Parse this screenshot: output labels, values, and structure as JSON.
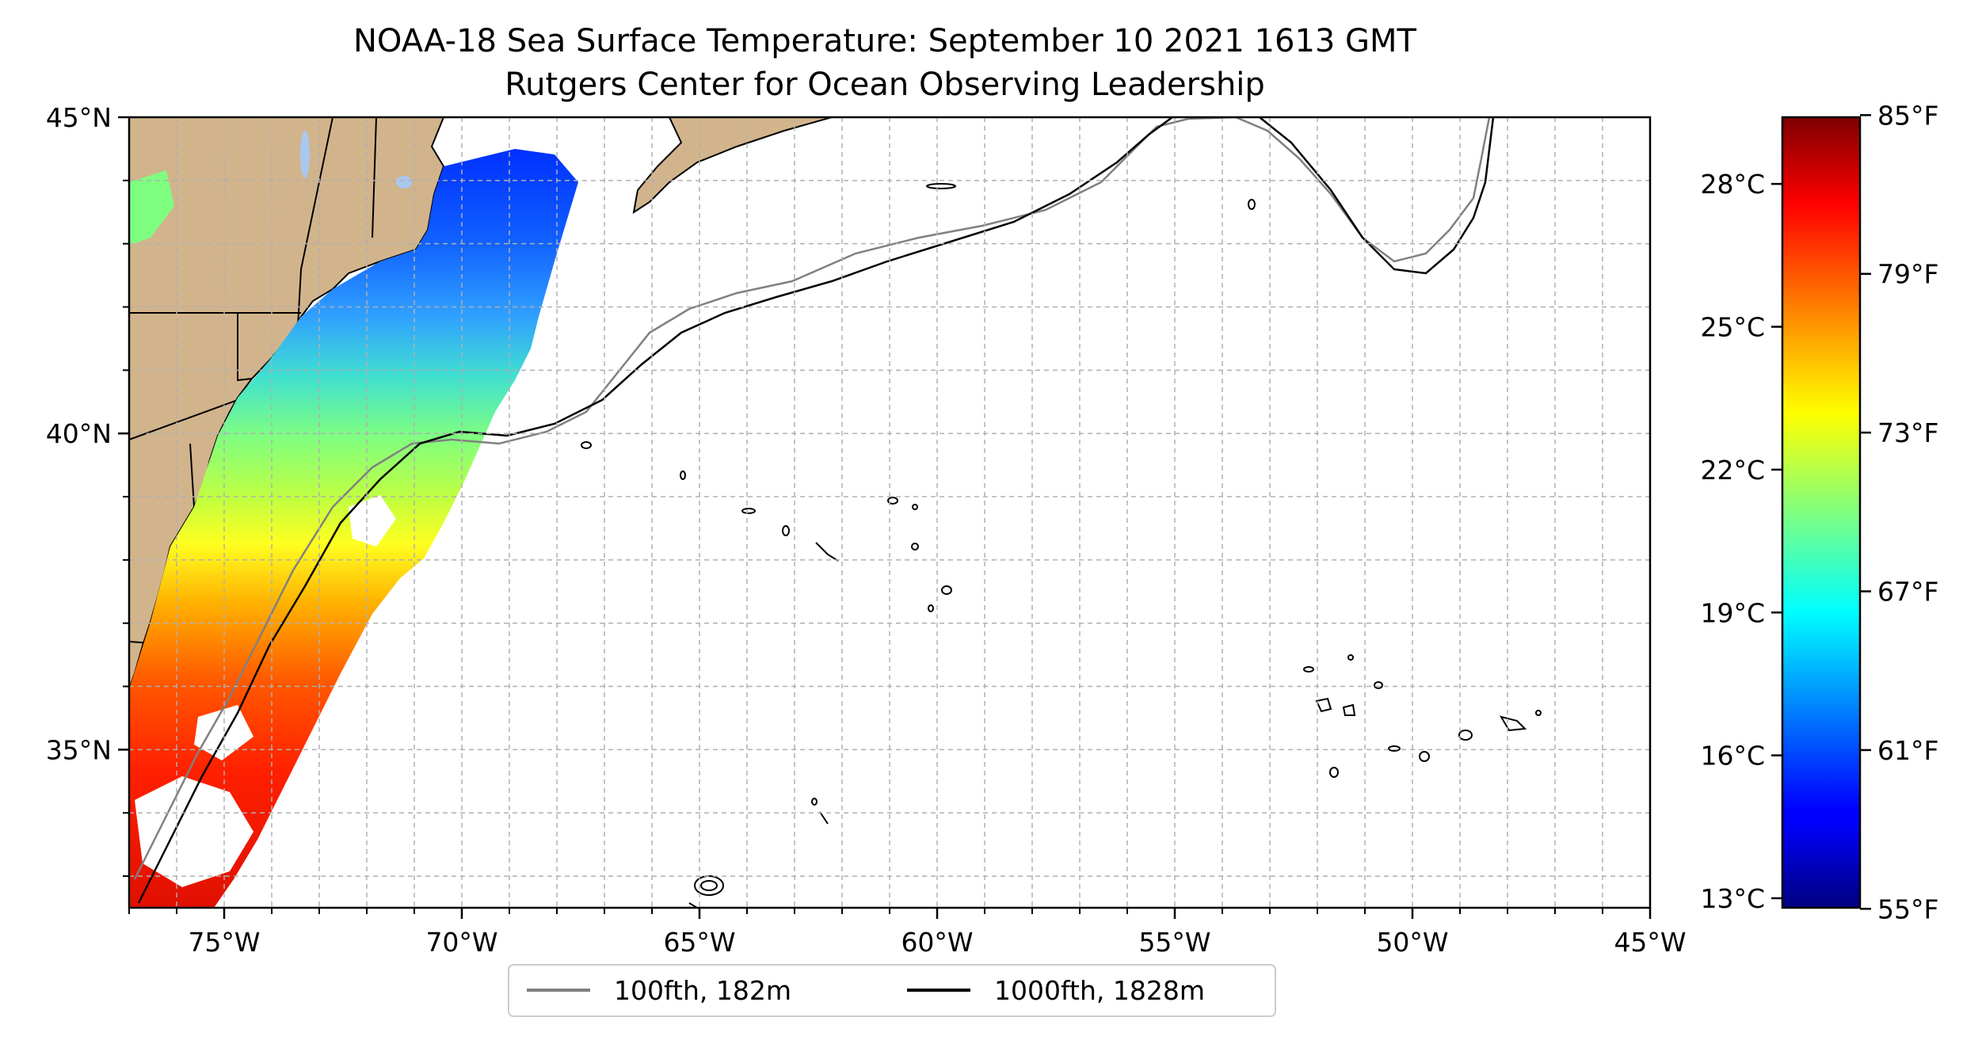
{
  "title_line1": "NOAA-18 Sea Surface Temperature: September 10 2021 1613 GMT",
  "title_line2": "Rutgers Center for Ocean Observing Leadership",
  "map": {
    "lon_range": [
      -77,
      -45
    ],
    "lat_range": [
      32.5,
      45
    ],
    "lon_ticks": [
      {
        "value": -75,
        "label": "75°W"
      },
      {
        "value": -70,
        "label": "70°W"
      },
      {
        "value": -65,
        "label": "65°W"
      },
      {
        "value": -60,
        "label": "60°W"
      },
      {
        "value": -55,
        "label": "55°W"
      },
      {
        "value": -50,
        "label": "50°W"
      },
      {
        "value": -45,
        "label": "45°W"
      }
    ],
    "lat_ticks": [
      {
        "value": 45,
        "label": "45°N"
      },
      {
        "value": 40,
        "label": "40°N"
      },
      {
        "value": 35,
        "label": "35°N"
      }
    ],
    "grid_step_deg": 1,
    "grid": true,
    "land_color": "#d2b48c",
    "ocean_color": "#ffffff"
  },
  "legend": {
    "placement": "bottom-center",
    "entries": [
      {
        "label": "100fth, 182m",
        "color": "#808080"
      },
      {
        "label": "1000fth, 1828m",
        "color": "#000000"
      }
    ]
  },
  "colorbar": {
    "colormap": "jet",
    "range_c": [
      12.8,
      29.4
    ],
    "celsius_ticks": [
      {
        "value": 13,
        "label": "13°C"
      },
      {
        "value": 16,
        "label": "16°C"
      },
      {
        "value": 19,
        "label": "19°C"
      },
      {
        "value": 22,
        "label": "22°C"
      },
      {
        "value": 25,
        "label": "25°C"
      },
      {
        "value": 28,
        "label": "28°C"
      }
    ],
    "fahrenheit_ticks": [
      {
        "value": 55,
        "label": "55°F"
      },
      {
        "value": 61,
        "label": "61°F"
      },
      {
        "value": 67,
        "label": "67°F"
      },
      {
        "value": 73,
        "label": "73°F"
      },
      {
        "value": 79,
        "label": "79°F"
      },
      {
        "value": 85,
        "label": "85°F"
      }
    ]
  }
}
